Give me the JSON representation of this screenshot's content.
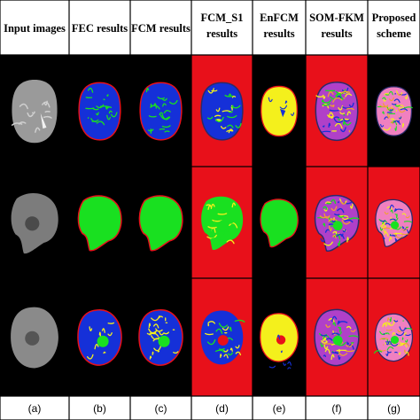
{
  "figure": {
    "columns": [
      {
        "header_lines": [
          "Input images"
        ],
        "label": "(a)",
        "method": "input"
      },
      {
        "header_lines": [
          "FEC results"
        ],
        "label": "(b)",
        "method": "fec"
      },
      {
        "header_lines": [
          "FCM results"
        ],
        "label": "(c)",
        "method": "fcm"
      },
      {
        "header_lines": [
          "FCM_S1",
          "results"
        ],
        "label": "(d)",
        "method": "fcms1"
      },
      {
        "header_lines": [
          "EnFCM",
          "results"
        ],
        "label": "(e)",
        "method": "enfcm"
      },
      {
        "header_lines": [
          "SOM-FKM",
          "results"
        ],
        "label": "(f)",
        "method": "somfkm"
      },
      {
        "header_lines": [
          "Proposed",
          "scheme"
        ],
        "label": "(g)",
        "method": "proposed"
      }
    ],
    "rows": 3,
    "colors": {
      "background": "#000000",
      "red": "#e8101a",
      "green": "#19e020",
      "blue": "#1530d8",
      "yellow": "#f4f01c",
      "gray": "#8a8a8a",
      "purple": "#b040c8",
      "pink": "#f080c0",
      "orange": "#f0a030"
    }
  }
}
